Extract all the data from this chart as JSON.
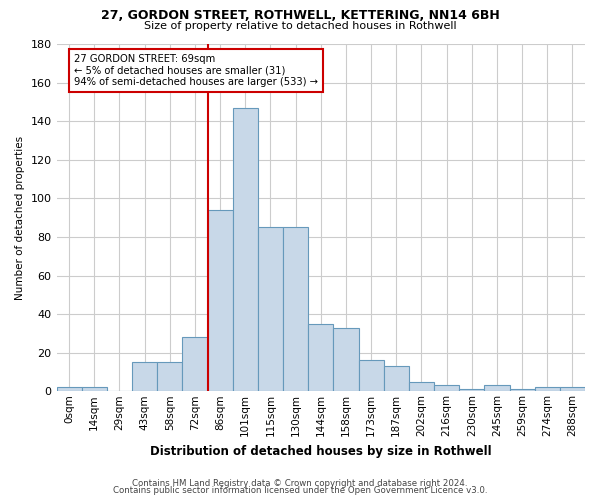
{
  "title1": "27, GORDON STREET, ROTHWELL, KETTERING, NN14 6BH",
  "title2": "Size of property relative to detached houses in Rothwell",
  "xlabel": "Distribution of detached houses by size in Rothwell",
  "ylabel": "Number of detached properties",
  "footer1": "Contains HM Land Registry data © Crown copyright and database right 2024.",
  "footer2": "Contains public sector information licensed under the Open Government Licence v3.0.",
  "bar_labels": [
    "0sqm",
    "14sqm",
    "29sqm",
    "43sqm",
    "58sqm",
    "72sqm",
    "86sqm",
    "101sqm",
    "115sqm",
    "130sqm",
    "144sqm",
    "158sqm",
    "173sqm",
    "187sqm",
    "202sqm",
    "216sqm",
    "230sqm",
    "245sqm",
    "259sqm",
    "274sqm",
    "288sqm"
  ],
  "bar_values": [
    2,
    2,
    0,
    15,
    15,
    28,
    94,
    147,
    85,
    85,
    35,
    33,
    16,
    13,
    5,
    3,
    1,
    3,
    1,
    2,
    2
  ],
  "bar_color": "#c8d8e8",
  "bar_edge_color": "#6699bb",
  "vline_x_index": 6,
  "vline_color": "#cc0000",
  "annotation_text": "27 GORDON STREET: 69sqm\n← 5% of detached houses are smaller (31)\n94% of semi-detached houses are larger (533) →",
  "annotation_box_color": "#ffffff",
  "annotation_box_edge_color": "#cc0000",
  "ylim": [
    0,
    180
  ],
  "yticks": [
    0,
    20,
    40,
    60,
    80,
    100,
    120,
    140,
    160,
    180
  ],
  "background_color": "#ffffff",
  "grid_color": "#cccccc",
  "figsize": [
    6.0,
    5.0
  ],
  "dpi": 100
}
